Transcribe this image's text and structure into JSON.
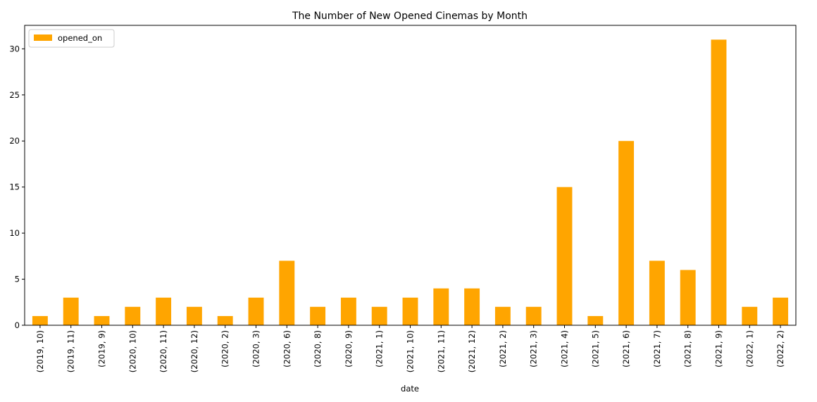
{
  "chart_data": {
    "type": "bar",
    "title": "The Number of New Opened Cinemas by Month",
    "xlabel": "date",
    "ylabel": "",
    "ylim": [
      0,
      32.55
    ],
    "yticks": [
      0,
      5,
      10,
      15,
      20,
      25,
      30
    ],
    "grid": false,
    "legend_position": "top-left",
    "bar_color": "#FFA500",
    "categories": [
      "(2019, 10)",
      "(2019, 11)",
      "(2019, 9)",
      "(2020, 10)",
      "(2020, 11)",
      "(2020, 12)",
      "(2020, 2)",
      "(2020, 3)",
      "(2020, 6)",
      "(2020, 8)",
      "(2020, 9)",
      "(2021, 1)",
      "(2021, 10)",
      "(2021, 11)",
      "(2021, 12)",
      "(2021, 2)",
      "(2021, 3)",
      "(2021, 4)",
      "(2021, 5)",
      "(2021, 6)",
      "(2021, 7)",
      "(2021, 8)",
      "(2021, 9)",
      "(2022, 1)",
      "(2022, 2)"
    ],
    "series": [
      {
        "name": "opened_on",
        "values": [
          1,
          3,
          1,
          2,
          3,
          2,
          1,
          3,
          7,
          2,
          3,
          2,
          3,
          4,
          4,
          2,
          2,
          15,
          1,
          20,
          7,
          6,
          31,
          2,
          3
        ]
      }
    ]
  }
}
